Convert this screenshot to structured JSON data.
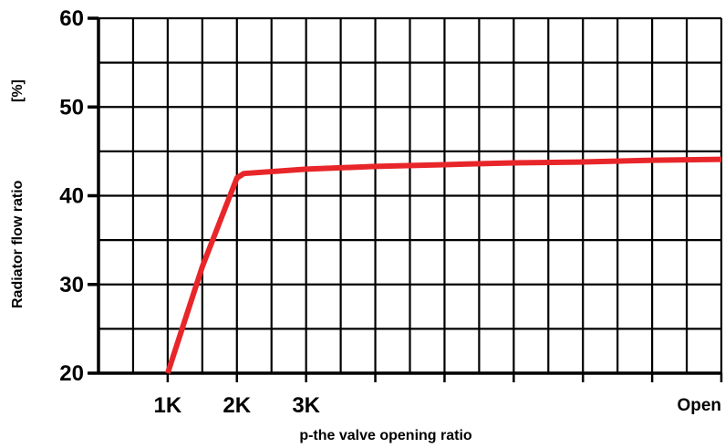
{
  "chart_data": {
    "type": "line",
    "xlabel": "p-the valve opening ratio",
    "ylabel": "Radiator flow ratio",
    "yunit": "[%]",
    "ylim": [
      20,
      60
    ],
    "xlim": [
      0,
      9
    ],
    "yticks": [
      20,
      30,
      40,
      50,
      60
    ],
    "xticks": [
      {
        "value": 1,
        "label": "1K"
      },
      {
        "value": 2,
        "label": "2K"
      },
      {
        "value": 3,
        "label": "3K"
      },
      {
        "value": 9,
        "label": "Open"
      }
    ],
    "grid": true,
    "series": [
      {
        "color": "#e8262a",
        "x": [
          1,
          1.5,
          2,
          2.1,
          3,
          4,
          5,
          6,
          7,
          8,
          9
        ],
        "values": [
          20,
          32,
          42,
          42.5,
          43,
          43.3,
          43.5,
          43.7,
          43.8,
          44,
          44.1
        ]
      }
    ]
  }
}
